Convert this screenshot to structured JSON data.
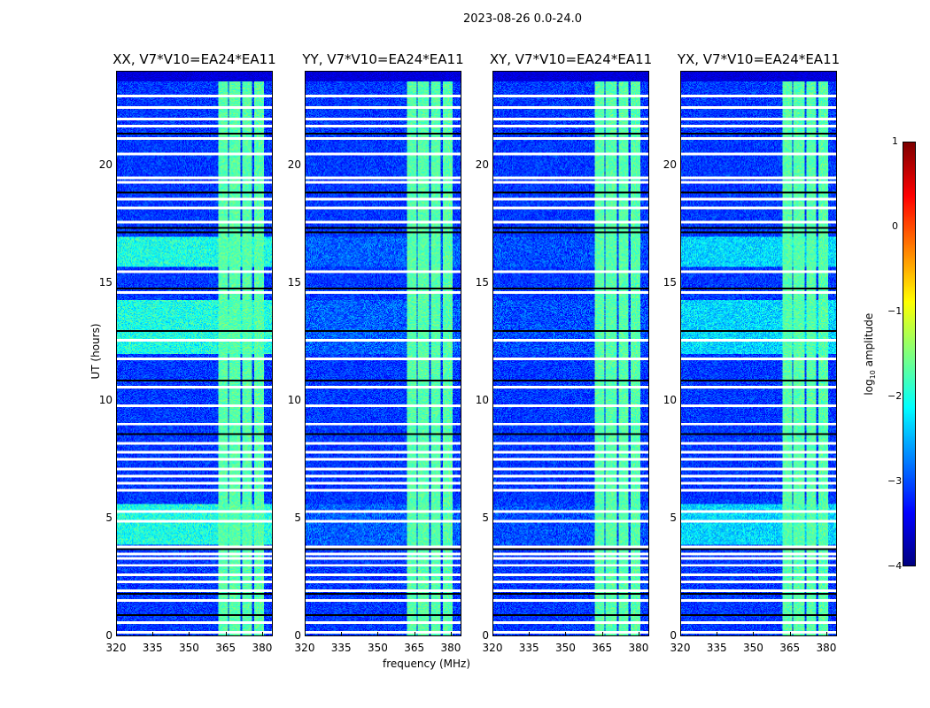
{
  "chart_data": {
    "type": "heatmap",
    "title": "2023-08-26 0.0-24.0",
    "xlabel": "frequency (MHz)",
    "ylabel": "UT (hours)",
    "xlim": [
      320,
      384.4
    ],
    "ylim": [
      0,
      24
    ],
    "xticks": [
      "320",
      "335",
      "350",
      "365",
      "380"
    ],
    "yticks": [
      "0",
      "5",
      "10",
      "15",
      "20"
    ],
    "panels": [
      {
        "title": "XX, V7*V10=EA24*EA11",
        "rfi_level": -2.0
      },
      {
        "title": "YY, V7*V10=EA24*EA11",
        "rfi_level": -2.9
      },
      {
        "title": "XY, V7*V10=EA24*EA11",
        "rfi_level": -3.0
      },
      {
        "title": "YX, V7*V10=EA24*EA11",
        "rfi_level": -2.3
      }
    ],
    "background_level": -3.1,
    "band_segments_mhz": [
      [
        362,
        366
      ],
      [
        366.5,
        371
      ],
      [
        372,
        376
      ],
      [
        377,
        381
      ]
    ],
    "band_level": -1.7,
    "rfi_hours": [
      [
        3.9,
        5.6
      ],
      [
        12,
        14.3
      ],
      [
        15.7,
        17
      ]
    ],
    "flagged_white_hours": [
      0.15,
      0.55,
      1.5,
      1.9,
      2.3,
      2.6,
      3.0,
      3.3,
      3.5,
      3.8,
      4.9,
      5.3,
      6.2,
      6.5,
      6.8,
      7.1,
      7.5,
      7.8,
      8.2,
      9.0,
      9.8,
      10.6,
      11.8,
      12.6,
      14.6,
      15.5,
      17.6,
      18.2,
      18.6,
      19.3,
      19.5,
      20.5,
      21.2,
      21.7,
      22.0,
      22.5,
      23.0
    ],
    "flagged_black_hours": [
      0.9,
      1.8,
      3.7,
      8.6,
      10.9,
      13.0,
      14.8,
      17.2,
      17.4,
      18.9,
      21.4
    ],
    "colorbar": {
      "label": "log10 amplitude",
      "label_main": "log",
      "label_sub": "10",
      "label_tail": " amplitude",
      "range": [
        -4,
        1
      ],
      "ticks": [
        "1",
        "0",
        "−1",
        "−2",
        "−3",
        "−4"
      ]
    }
  }
}
